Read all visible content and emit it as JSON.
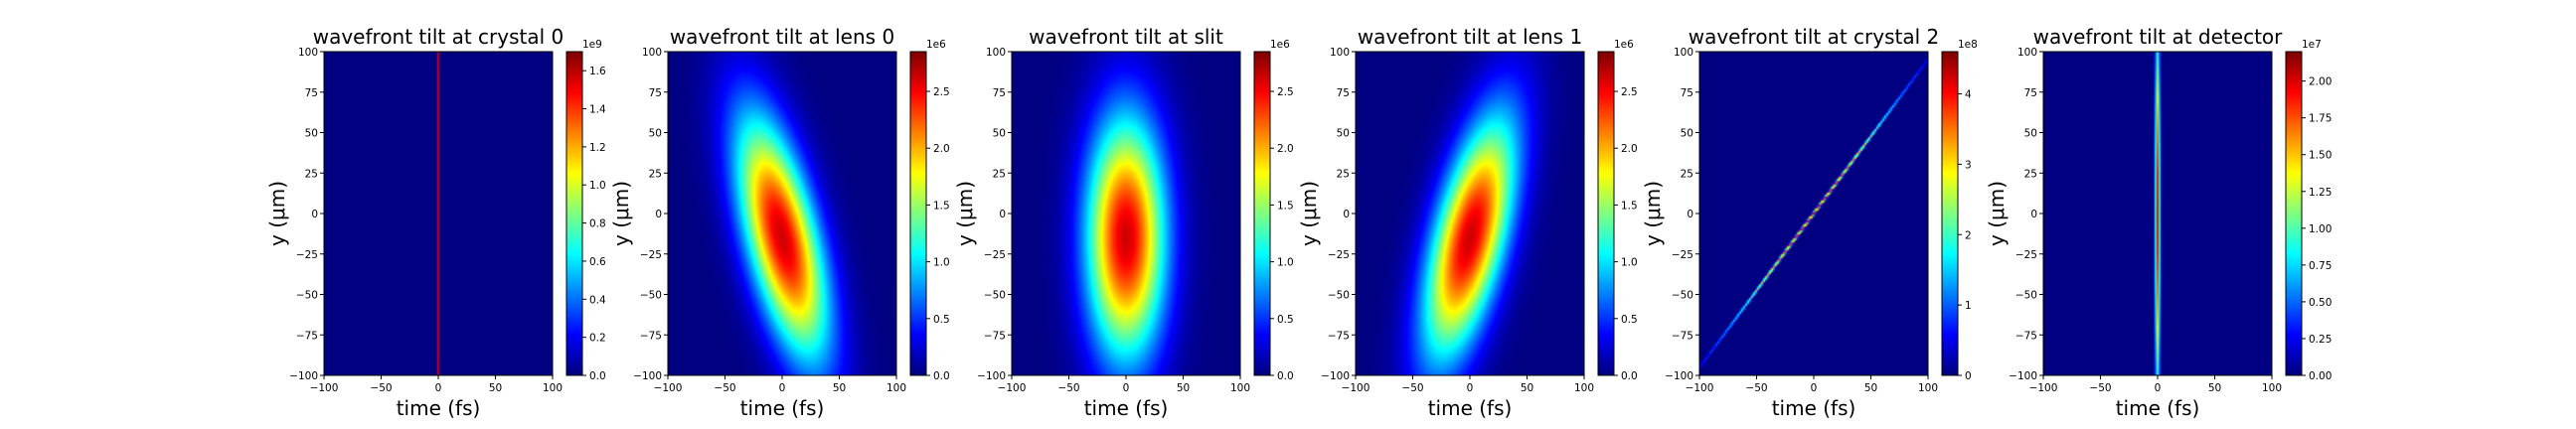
{
  "colors": {
    "axis": "#000000",
    "background": "#ffffff"
  },
  "colormap": "jet",
  "chart_data": [
    {
      "type": "heatmap",
      "title": "wavefront tilt at crystal 0",
      "xlabel": "time (fs)",
      "ylabel": "y (μm)",
      "xlim": [
        -100,
        100
      ],
      "ylim": [
        -100,
        100
      ],
      "xticks": [
        "−100",
        "−50",
        "0",
        "50",
        "100"
      ],
      "yticks": [
        "100",
        "75",
        "50",
        "25",
        "0",
        "−25",
        "−50",
        "−75",
        "−100"
      ],
      "colorbar": {
        "offset": "1e9",
        "ticks": [
          "1.6",
          "1.4",
          "1.2",
          "1.0",
          "0.8",
          "0.6",
          "0.4",
          "0.2",
          "0.0"
        ],
        "max": 1.7
      },
      "field": {
        "shape": "line",
        "t0": 0,
        "y0": 0,
        "slope": 0,
        "sigma_t": 0.6,
        "sigma_y": 900,
        "peak": 1.7
      }
    },
    {
      "type": "heatmap",
      "title": "wavefront tilt at lens 0",
      "xlabel": "time (fs)",
      "ylabel": "y (μm)",
      "xlim": [
        -100,
        100
      ],
      "ylim": [
        -100,
        100
      ],
      "xticks": [
        "−100",
        "−50",
        "0",
        "50",
        "100"
      ],
      "yticks": [
        "100",
        "75",
        "50",
        "25",
        "0",
        "−25",
        "−50",
        "−75",
        "−100"
      ],
      "colorbar": {
        "offset": "1e6",
        "ticks": [
          "2.5",
          "2.0",
          "1.5",
          "1.0",
          "0.5",
          "0.0"
        ],
        "max": 2.85
      },
      "field": {
        "shape": "blob",
        "t0": 0,
        "y0": -15,
        "slope": -0.32,
        "sigma_t": 22,
        "sigma_y": 52,
        "peak": 2.85
      }
    },
    {
      "type": "heatmap",
      "title": "wavefront tilt at slit",
      "xlabel": "time (fs)",
      "ylabel": "y (μm)",
      "xlim": [
        -100,
        100
      ],
      "ylim": [
        -100,
        100
      ],
      "xticks": [
        "−100",
        "−50",
        "0",
        "50",
        "100"
      ],
      "yticks": [
        "100",
        "75",
        "50",
        "25",
        "0",
        "−25",
        "−50",
        "−75",
        "−100"
      ],
      "colorbar": {
        "offset": "1e6",
        "ticks": [
          "2.5",
          "2.0",
          "1.5",
          "1.0",
          "0.5",
          "0.0"
        ],
        "max": 2.85
      },
      "field": {
        "shape": "blob",
        "t0": 0,
        "y0": -15,
        "slope": 0,
        "sigma_t": 24,
        "sigma_y": 52,
        "peak": 2.85
      }
    },
    {
      "type": "heatmap",
      "title": "wavefront tilt at lens 1",
      "xlabel": "time (fs)",
      "ylabel": "y (μm)",
      "xlim": [
        -100,
        100
      ],
      "ylim": [
        -100,
        100
      ],
      "xticks": [
        "−100",
        "−50",
        "0",
        "50",
        "100"
      ],
      "yticks": [
        "100",
        "75",
        "50",
        "25",
        "0",
        "−25",
        "−50",
        "−75",
        "−100"
      ],
      "colorbar": {
        "offset": "1e6",
        "ticks": [
          "2.5",
          "2.0",
          "1.5",
          "1.0",
          "0.5",
          "0.0"
        ],
        "max": 2.85
      },
      "field": {
        "shape": "blob",
        "t0": 0,
        "y0": -15,
        "slope": 0.32,
        "sigma_t": 22,
        "sigma_y": 52,
        "peak": 2.85
      }
    },
    {
      "type": "heatmap",
      "title": "wavefront tilt at crystal 2",
      "xlabel": "time (fs)",
      "ylabel": "y (μm)",
      "xlim": [
        -100,
        100
      ],
      "ylim": [
        -100,
        100
      ],
      "xticks": [
        "−100",
        "−50",
        "0",
        "50",
        "100"
      ],
      "yticks": [
        "100",
        "75",
        "50",
        "25",
        "0",
        "−25",
        "−50",
        "−75",
        "−100"
      ],
      "colorbar": {
        "offset": "1e8",
        "ticks": [
          "4",
          "3",
          "2",
          "1",
          "0"
        ],
        "max": 4.6
      },
      "field": {
        "shape": "line",
        "t0": 0,
        "y0": 0,
        "slope": 1.05,
        "sigma_t": 0.9,
        "sigma_y": 48,
        "peak": 4.6
      }
    },
    {
      "type": "heatmap",
      "title": "wavefront tilt at detector",
      "xlabel": "time (fs)",
      "ylabel": "y (μm)",
      "xlim": [
        -100,
        100
      ],
      "ylim": [
        -100,
        100
      ],
      "xticks": [
        "−100",
        "−50",
        "0",
        "50",
        "100"
      ],
      "yticks": [
        "100",
        "75",
        "50",
        "25",
        "0",
        "−25",
        "−50",
        "−75",
        "−100"
      ],
      "colorbar": {
        "offset": "1e7",
        "ticks": [
          "2.00",
          "1.75",
          "1.50",
          "1.25",
          "1.00",
          "0.75",
          "0.50",
          "0.25",
          "0.00"
        ],
        "max": 2.2
      },
      "field": {
        "shape": "line",
        "t0": 0,
        "y0": 0,
        "slope": 0,
        "sigma_t": 1.4,
        "sigma_y": 80,
        "peak": 2.2
      }
    }
  ]
}
